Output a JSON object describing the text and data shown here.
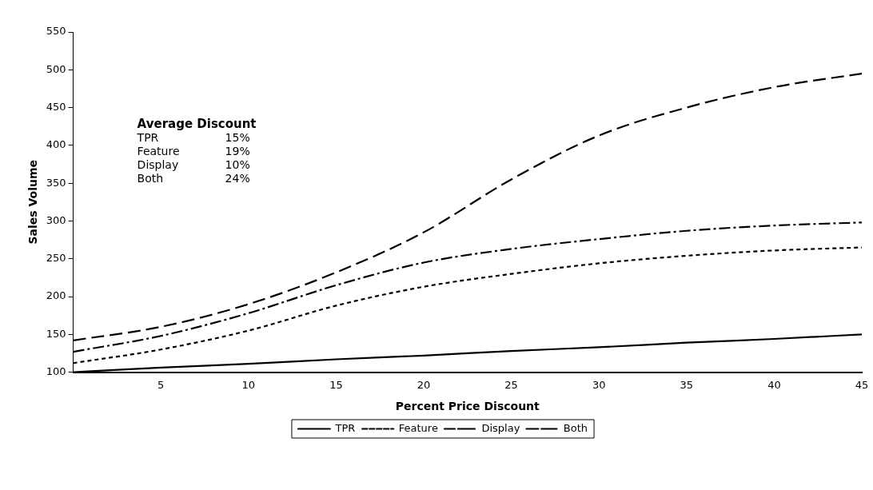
{
  "chart_data": {
    "type": "line",
    "xlabel": "Percent Price Discount",
    "ylabel": "Sales Volume",
    "x": [
      0,
      5,
      10,
      15,
      20,
      25,
      30,
      35,
      40,
      45
    ],
    "series": [
      {
        "name": "TPR",
        "color": "#000000",
        "line_style": "solid",
        "values": [
          100,
          106,
          111,
          117,
          122,
          128,
          133,
          139,
          144,
          150
        ]
      },
      {
        "name": "Feature",
        "color": "#000000",
        "line_style": "dotted",
        "values": [
          112,
          130,
          155,
          188,
          213,
          230,
          244,
          254,
          261,
          265
        ]
      },
      {
        "name": "Display",
        "color": "#000000",
        "line_style": "dashdot",
        "values": [
          127,
          148,
          178,
          215,
          245,
          263,
          276,
          287,
          294,
          298
        ]
      },
      {
        "name": "Both",
        "color": "#000000",
        "line_style": "dashed",
        "values": [
          142,
          160,
          190,
          232,
          285,
          355,
          413,
          450,
          477,
          495
        ]
      }
    ],
    "xlim": [
      0,
      45
    ],
    "xticks": [
      5,
      10,
      15,
      20,
      25,
      30,
      35,
      40,
      45
    ],
    "ylim": [
      100,
      550
    ],
    "yticks": [
      100,
      150,
      200,
      250,
      300,
      350,
      400,
      450,
      500,
      550
    ],
    "grid": false,
    "legend": "bottom",
    "marker": "none",
    "annotations": [
      "Average Discount",
      "TPR 15%",
      "Feature 19%",
      "Display 10%",
      "Both 24%"
    ]
  }
}
